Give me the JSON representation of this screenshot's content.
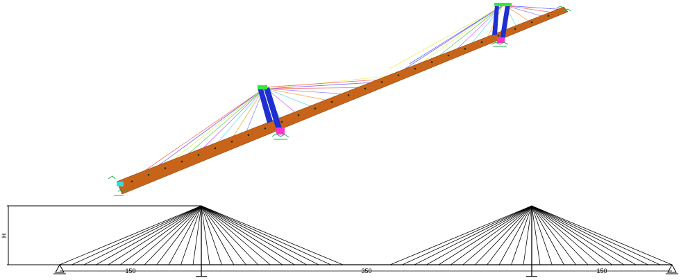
{
  "model_view": {
    "deck_color": "#c8641a",
    "deck_edge_color": "#8a4110",
    "pylon_color": "#1f2fd0",
    "pylon_top_color": "#38e838",
    "pylon_base_color": "#ff33cc",
    "support_color": "#21b24b",
    "node_color": "#0a3a0a",
    "cable_colors": [
      "#ff6666",
      "#6666ff",
      "#eeee66",
      "#66cc66",
      "#cc66ff",
      "#66ddee",
      "#ffaa44",
      "#8888ff"
    ]
  },
  "elevation": {
    "height_label": "H",
    "spans": [
      {
        "label": "150"
      },
      {
        "label": "350"
      },
      {
        "label": "150"
      }
    ],
    "cables_per_side": 12,
    "line_color": "#000000"
  }
}
